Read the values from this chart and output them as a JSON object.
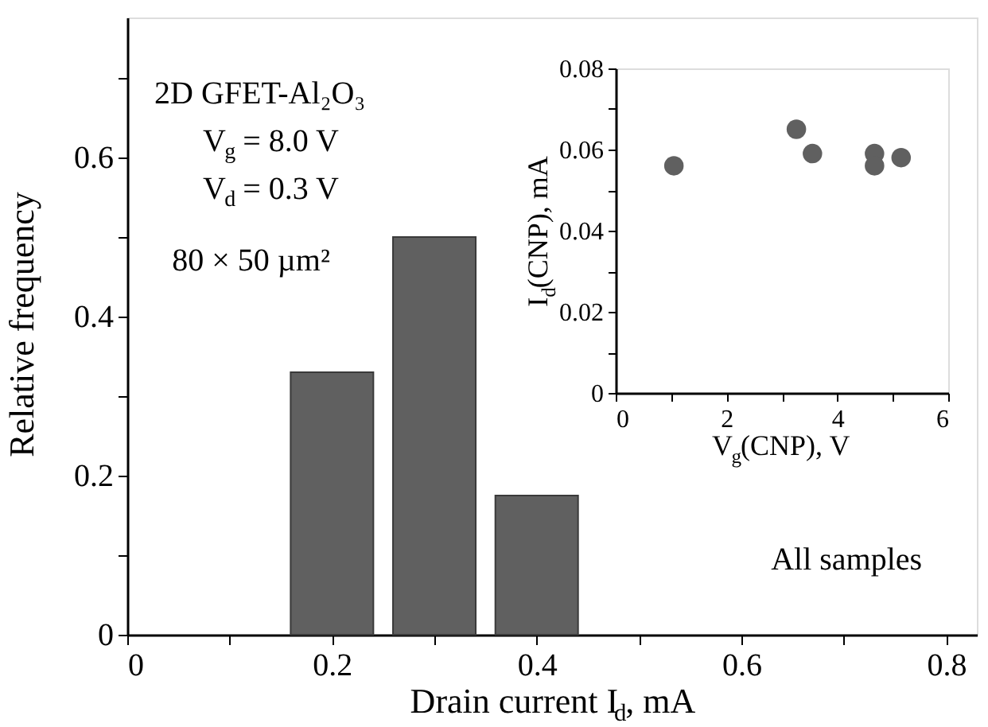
{
  "chart_data": [
    {
      "type": "bar",
      "x": [
        0.2,
        0.3,
        0.4
      ],
      "values": [
        0.33,
        0.5,
        0.175
      ],
      "color": "#606060",
      "xlabel": "Drain current I$_{d}$, mA",
      "ylabel": "Relative frequency",
      "xlim": [
        0,
        0.83
      ],
      "xticks": [
        0,
        {
          "value": 0.1,
          "label": null
        },
        0.2,
        {
          "value": 0.3,
          "label": null
        },
        0.4,
        {
          "value": 0.5,
          "label": null
        },
        0.6,
        {
          "value": 0.7,
          "label": null
        },
        0.8
      ],
      "ylim": [
        0,
        0.776
      ],
      "yticks": [
        0,
        {
          "value": 0.1,
          "label": null
        },
        0.2,
        {
          "value": 0.3,
          "label": null
        },
        0.4,
        {
          "value": 0.5,
          "label": null
        },
        0.6,
        {
          "value": 0.7,
          "label": null
        }
      ],
      "grid": false,
      "annotations": [
        "2D GFET-Al₂O₃",
        "V$_{g}$ = 8.0 V",
        "V$_{d}$ = 0.3 V",
        "80 × 50 µm²",
        "All samples"
      ]
    },
    {
      "type": "scatter",
      "x": [
        1.05,
        3.26,
        3.55,
        4.67,
        4.67,
        5.15
      ],
      "values": [
        0.056,
        0.065,
        0.059,
        0.059,
        0.056,
        0.058
      ],
      "color": "#606060",
      "marker": "circle",
      "xlabel": "V$_{g}$(CNP), V",
      "ylabel": "I$_{d}$(CNP), mA",
      "xlim": [
        0,
        6
      ],
      "xticks": [
        0,
        {
          "value": 1,
          "label": null
        },
        2,
        {
          "value": 3,
          "label": null
        },
        4,
        {
          "value": 5,
          "label": null
        },
        6
      ],
      "ylim": [
        0,
        0.08
      ],
      "yticks": [
        0,
        {
          "value": 0.01,
          "label": null
        },
        0.02,
        {
          "value": 0.03,
          "label": null
        },
        0.04,
        {
          "value": 0.05,
          "label": null
        },
        0.06,
        {
          "value": 0.07,
          "label": null
        },
        0.08
      ],
      "grid": false
    }
  ]
}
